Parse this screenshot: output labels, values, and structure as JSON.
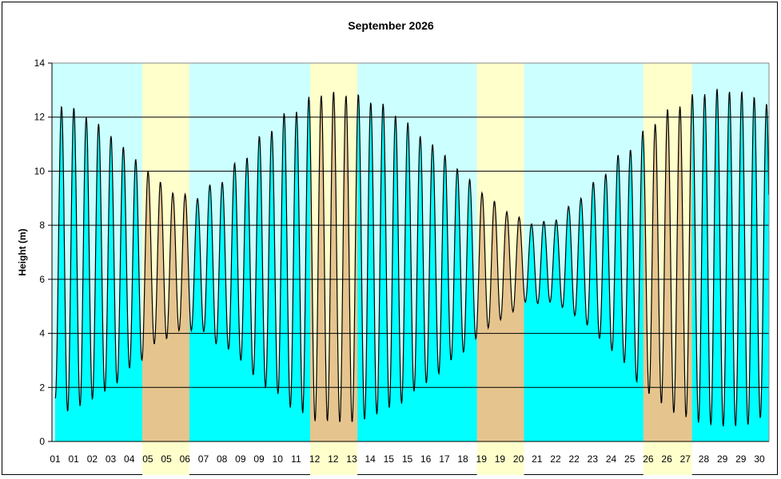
{
  "chart_data": {
    "type": "area",
    "title": "September 2026",
    "xlabel": "",
    "ylabel": "Height (m)",
    "ylim": [
      0,
      14
    ],
    "xlim_days": [
      0,
      30
    ],
    "yticks": [
      "0",
      "2",
      "4",
      "6",
      "8",
      "10",
      "12",
      "14"
    ],
    "xtick_labels": [
      "01",
      "01",
      "02",
      "03",
      "04",
      "05",
      "05",
      "06",
      "07",
      "08",
      "09",
      "09",
      "10",
      "11",
      "12",
      "12",
      "13",
      "14",
      "15",
      "15",
      "16",
      "17",
      "18",
      "19",
      "19",
      "20",
      "21",
      "22",
      "22",
      "23",
      "24",
      "25",
      "26",
      "26",
      "27",
      "28",
      "29",
      "29",
      "30"
    ],
    "grid": true,
    "first_low_day": 0.14,
    "tide_period_days": 0.5175,
    "initial_low_m": 1.6,
    "high_tides_m": [
      12.4,
      12.35,
      12.0,
      11.75,
      11.3,
      10.9,
      10.45,
      10.0,
      9.6,
      9.2,
      9.15,
      9.0,
      9.5,
      9.6,
      10.3,
      10.5,
      11.3,
      11.5,
      12.15,
      12.2,
      12.75,
      12.8,
      12.95,
      12.8,
      12.85,
      12.55,
      12.5,
      12.05,
      11.8,
      11.3,
      11.0,
      10.6,
      10.1,
      9.7,
      9.2,
      8.9,
      8.5,
      8.3,
      8.05,
      8.15,
      8.2,
      8.7,
      9.0,
      9.6,
      9.9,
      10.6,
      10.8,
      11.5,
      11.75,
      12.3,
      12.4,
      12.85,
      12.85,
      13.05,
      12.95,
      12.95,
      12.75,
      12.5
    ],
    "low_tides_m": [
      1.1,
      1.3,
      1.55,
      1.85,
      2.15,
      2.7,
      3.0,
      3.6,
      3.8,
      4.1,
      4.1,
      4.05,
      3.6,
      3.4,
      3.0,
      2.45,
      2.0,
      1.75,
      1.25,
      1.05,
      0.75,
      0.75,
      0.7,
      0.7,
      0.8,
      1.0,
      1.25,
      1.4,
      1.85,
      2.15,
      2.5,
      3.0,
      3.3,
      3.8,
      4.2,
      4.5,
      4.8,
      5.15,
      5.1,
      5.15,
      4.95,
      4.65,
      4.3,
      3.8,
      3.35,
      2.9,
      2.2,
      1.75,
      1.4,
      1.05,
      0.9,
      0.7,
      0.6,
      0.55,
      0.55,
      0.6,
      0.85
    ],
    "highlight_bands_days": [
      [
        3.78,
        5.75
      ],
      [
        10.8,
        12.78
      ],
      [
        17.78,
        19.75
      ],
      [
        24.74,
        26.78
      ]
    ],
    "colors": {
      "background": "#CCFFFF",
      "band": "#FFFFCC",
      "tide_fill": "#00FFFF",
      "tide_fill_band": "#E6C48E",
      "line": "#000000"
    }
  }
}
